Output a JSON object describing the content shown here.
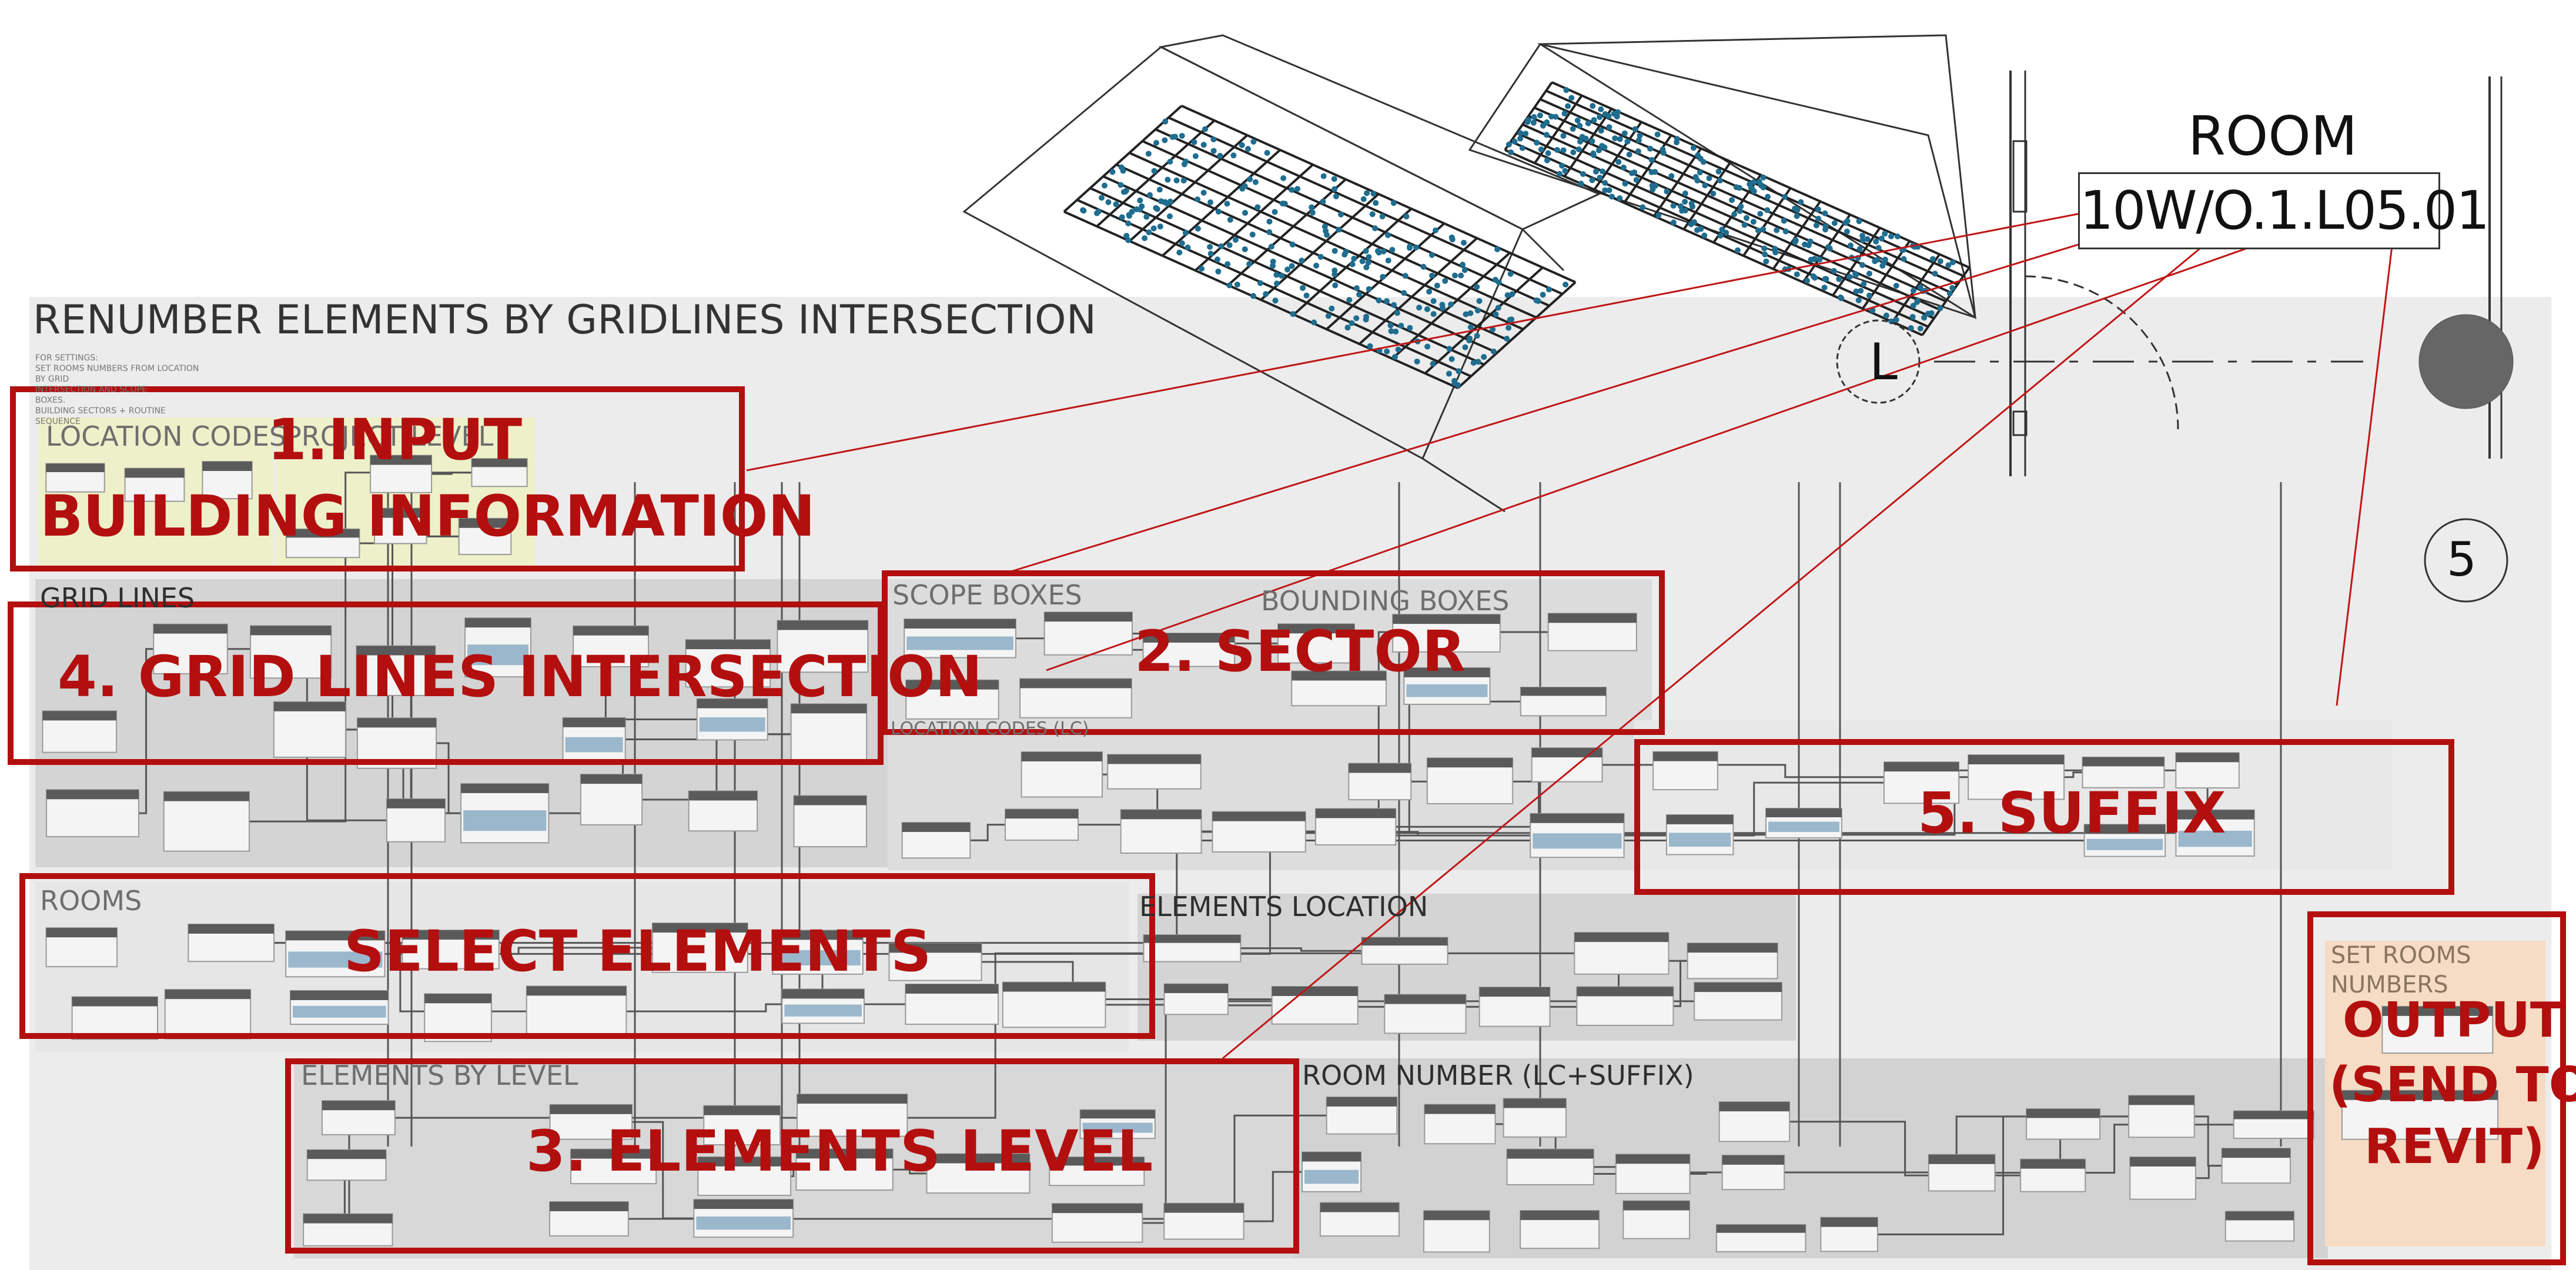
{
  "title": "RENUMBER ELEMENTS BY GRIDLINES INTERSECTION",
  "notes": "FOR SETTINGS:\nSET ROOMS NUMBERS FROM LOCATION\nBY GRID\nINTERSECTION AND SCOPE\nBOXES.\nBUILDING SECTORS + ROUTINE\nSEQUENCE",
  "groups": {
    "location_codes": "LOCATION CODES",
    "project_level": "PROJECT LEVEL",
    "grid_lines": "GRID LINES",
    "scope_boxes": "SCOPE BOXES",
    "bounding_boxes": "BOUNDING BOXES",
    "location_codes_lc": "LOCATION CODES (LC)",
    "elements_location": "ELEMENTS LOCATION",
    "rooms": "ROOMS",
    "elements_by_level": "ELEMENTS BY LEVEL",
    "room_number": "ROOM NUMBER (LC+SUFFIX)",
    "set_rooms_numbers_1": "SET ROOMS",
    "set_rooms_numbers_2": "NUMBERS"
  },
  "callouts": {
    "input_1": "1.INPUT",
    "input_2": "BUILDING INFORMATION",
    "sector": "2. SECTOR",
    "elements_level": "3. ELEMENTS LEVEL",
    "grid_intersection": "4. GRID LINES INTERSECTION",
    "suffix": "5. SUFFIX",
    "select_elements": "SELECT ELEMENTS",
    "output_1": "OUTPUT",
    "output_2": "(SEND TO",
    "output_3": "REVIT)"
  },
  "room_tag": {
    "label": "ROOM",
    "number": "10W/O.1.L05.01"
  },
  "grid_bubbles": {
    "letter": "L",
    "number": "5"
  },
  "colors": {
    "callout": "#b30f0f",
    "canvas_bg": "#ececec",
    "group_bg": "#d9d9d9",
    "node_header": "#555555",
    "node_body": "#f4f4f4",
    "input_group": "#eef0c9",
    "output_group": "#f6dcc4",
    "points": "#1f6d8f"
  }
}
